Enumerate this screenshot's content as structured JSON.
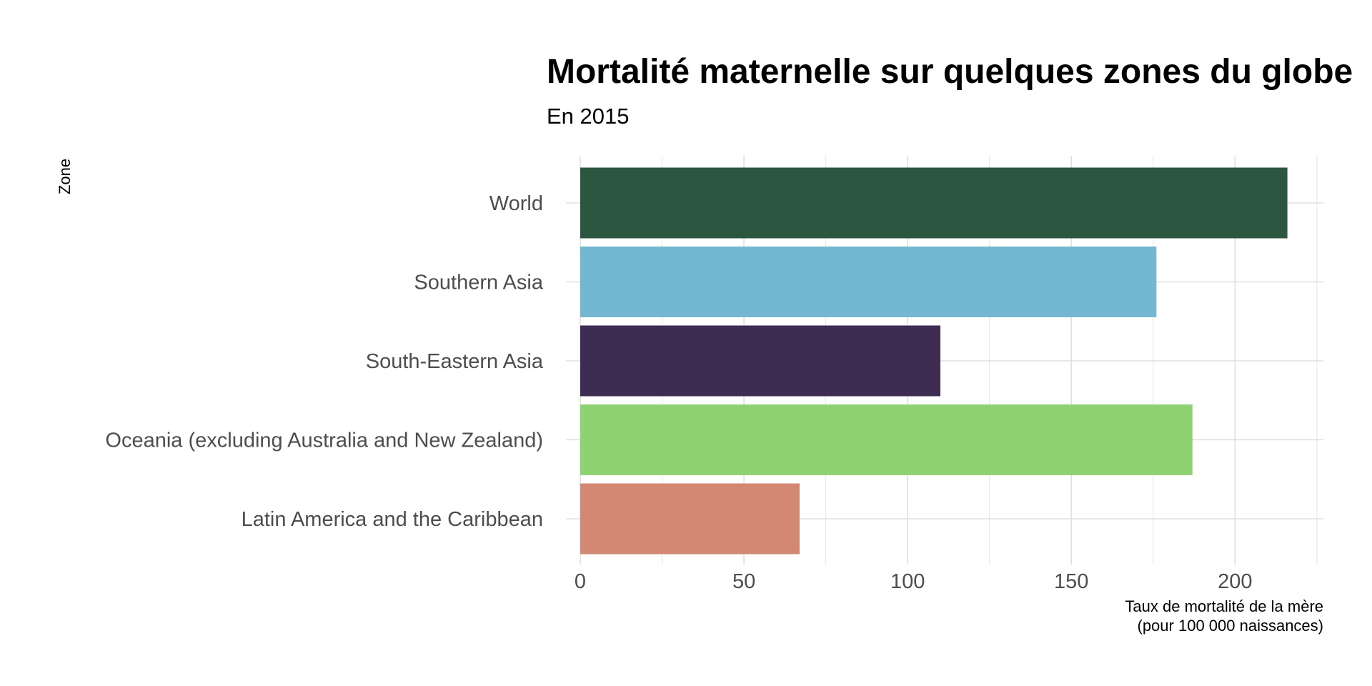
{
  "chart_data": {
    "type": "bar",
    "orientation": "horizontal",
    "title": "Mortalité maternelle sur quelques zones du globe",
    "subtitle": "En 2015",
    "xlabel_line1": "Taux de mortalité de la mère",
    "xlabel_line2": "(pour 100 000 naissances)",
    "ylabel": "Zone",
    "categories": [
      "World",
      "Southern Asia",
      "South-Eastern Asia",
      "Oceania (excluding Australia and New Zealand)",
      "Latin America and the Caribbean"
    ],
    "values": [
      216,
      176,
      110,
      187,
      67
    ],
    "colors": [
      "#2d5641",
      "#74b7d1",
      "#3f2c53",
      "#8ed273",
      "#d38873"
    ],
    "xlim": [
      0,
      227
    ],
    "xticks": [
      0,
      50,
      100,
      150,
      200
    ],
    "xticks_minor": [
      25,
      75,
      125,
      175,
      225
    ],
    "grid": true
  }
}
